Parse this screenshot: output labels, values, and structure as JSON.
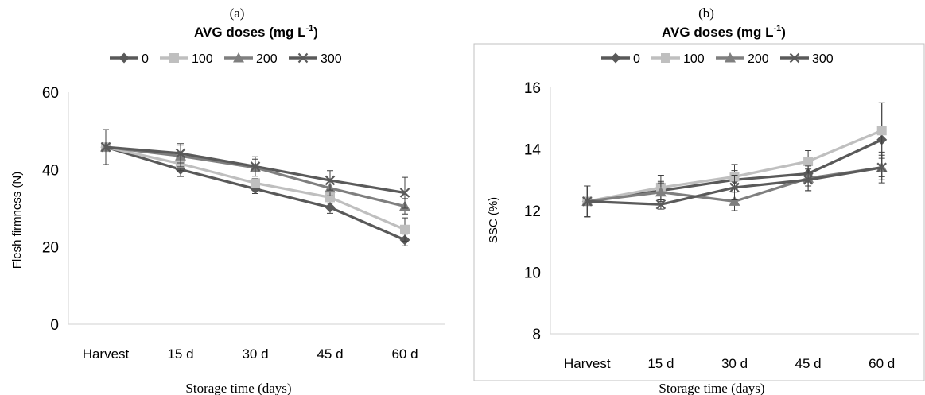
{
  "colors": {
    "s0": "#595959",
    "s100": "#bfbfbf",
    "s200": "#7f7f7f",
    "s300": "#5a5a5a",
    "axis": "#d9d9d9",
    "frame": "#c0c0c0",
    "text": "#000000"
  },
  "chart_data": [
    {
      "type": "line",
      "panel_label": "(a)",
      "title": "AVG doses (mg L",
      "title_sup": "-1",
      "title_close": ")",
      "xlabel": "Storage time (days)",
      "ylabel": "Flesh firmness (N)",
      "categories": [
        "Harvest",
        "15 d",
        "30 d",
        "45 d",
        "60 d"
      ],
      "ylim": [
        0,
        60
      ],
      "yticks": [
        "0",
        "20",
        "40",
        "60"
      ],
      "grid": false,
      "legend_placement": "top",
      "series": [
        {
          "name": "0",
          "marker": "diamond",
          "values": [
            45.8,
            40.0,
            35.0,
            30.2,
            21.8
          ],
          "errors": [
            4.5,
            1.8,
            1.2,
            1.5,
            1.5
          ]
        },
        {
          "name": "100",
          "marker": "square",
          "values": [
            45.8,
            41.5,
            36.5,
            32.8,
            24.5
          ],
          "errors": [
            4.5,
            1.8,
            1.2,
            1.5,
            3.0
          ]
        },
        {
          "name": "200",
          "marker": "triangle",
          "values": [
            45.8,
            43.5,
            40.5,
            35.2,
            30.5
          ],
          "errors": [
            4.5,
            2.8,
            2.2,
            2.0,
            2.0
          ]
        },
        {
          "name": "300",
          "marker": "x",
          "values": [
            45.8,
            44.2,
            40.8,
            37.2,
            34.0
          ],
          "errors": [
            4.5,
            2.5,
            2.5,
            2.5,
            4.0
          ]
        }
      ]
    },
    {
      "type": "line",
      "panel_label": "(b)",
      "title": "AVG doses (mg L",
      "title_sup": "-1",
      "title_close": ")",
      "xlabel": "Storage time (days)",
      "ylabel": "SSC (%)",
      "categories": [
        "Harvest",
        "15 d",
        "30 d",
        "45 d",
        "60 d"
      ],
      "ylim": [
        8,
        16
      ],
      "yticks": [
        "8",
        "10",
        "12",
        "14",
        "16"
      ],
      "grid": false,
      "legend_placement": "top",
      "series": [
        {
          "name": "0",
          "marker": "diamond",
          "values": [
            12.3,
            12.65,
            13.0,
            13.2,
            14.3
          ],
          "errors": [
            0.5,
            0.3,
            0.3,
            0.4,
            1.2
          ]
        },
        {
          "name": "100",
          "marker": "square",
          "values": [
            12.3,
            12.75,
            13.1,
            13.6,
            14.6
          ],
          "errors": [
            0.5,
            0.4,
            0.4,
            0.35,
            0.9
          ]
        },
        {
          "name": "200",
          "marker": "triangle",
          "values": [
            12.3,
            12.6,
            12.3,
            13.05,
            13.4
          ],
          "errors": [
            0.5,
            0.3,
            0.3,
            0.4,
            0.5
          ]
        },
        {
          "name": "300",
          "marker": "x",
          "values": [
            12.3,
            12.2,
            12.75,
            13.0,
            13.4
          ],
          "errors": [
            0.5,
            0.15,
            0.4,
            0.35,
            0.4
          ]
        }
      ]
    }
  ]
}
